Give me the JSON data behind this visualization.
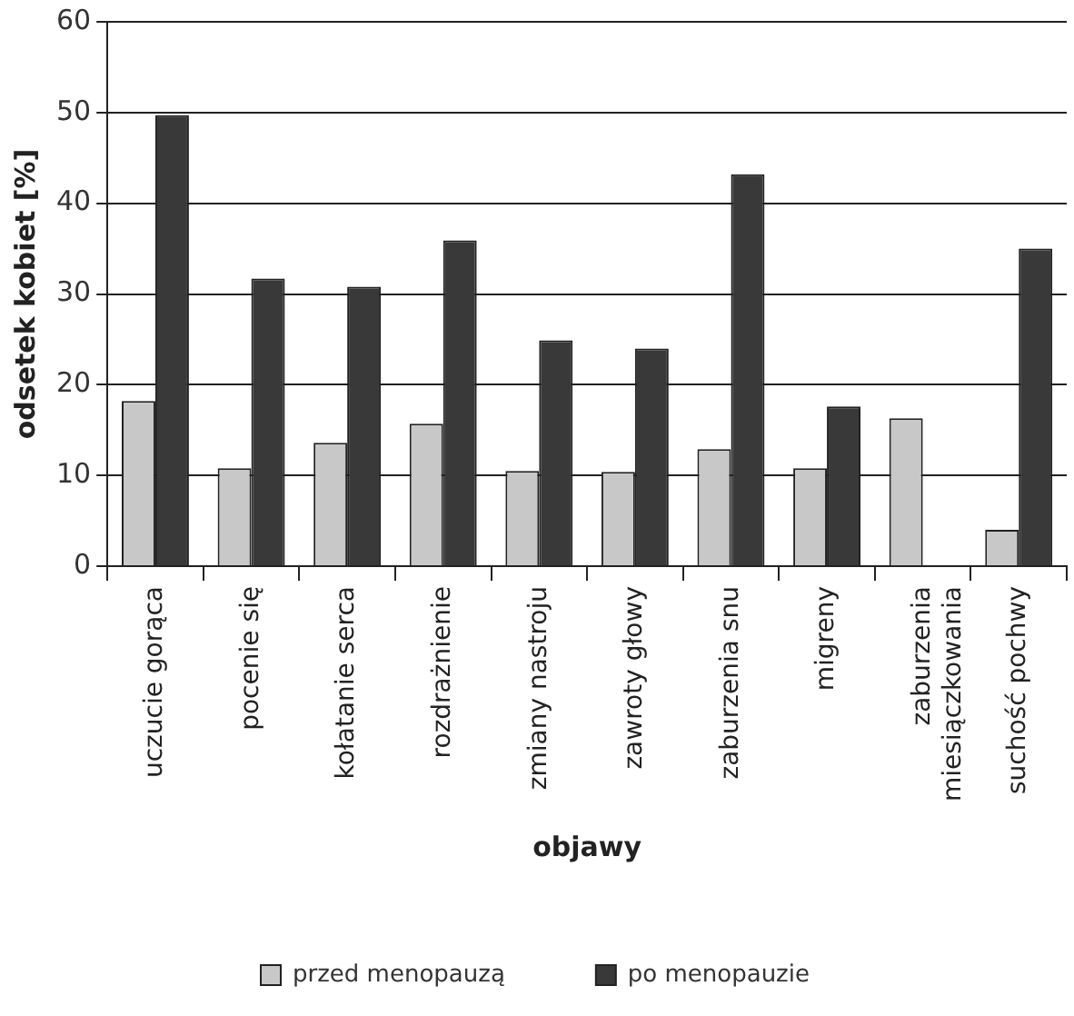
{
  "chart_data": {
    "type": "bar",
    "xlabel": "objawy",
    "ylabel": "odsetek kobiet [%]",
    "categories": [
      "uczucie gorąca",
      "pocenie się",
      "kołatanie serca",
      "rozdrażnienie",
      "zmiany nastroju",
      "zawroty głowy",
      "zaburzenia snu",
      "migreny",
      "zaburzenia miesiączkowania",
      "suchość pochwy"
    ],
    "series": [
      {
        "name": "przed menopauzą",
        "color": "#c8c8c8",
        "values": [
          18.2,
          10.8,
          13.6,
          15.7,
          10.5,
          10.4,
          12.9,
          10.8,
          16.3,
          4.0
        ]
      },
      {
        "name": "po menopauzie",
        "color": "#393939",
        "values": [
          49.7,
          31.7,
          30.8,
          35.9,
          24.9,
          24.0,
          43.2,
          17.6,
          null,
          35.0
        ]
      }
    ],
    "ylim": [
      0,
      60
    ],
    "yticks": [
      0,
      10,
      20,
      30,
      40,
      50,
      60
    ],
    "grid": "y",
    "legend": "bottom"
  }
}
